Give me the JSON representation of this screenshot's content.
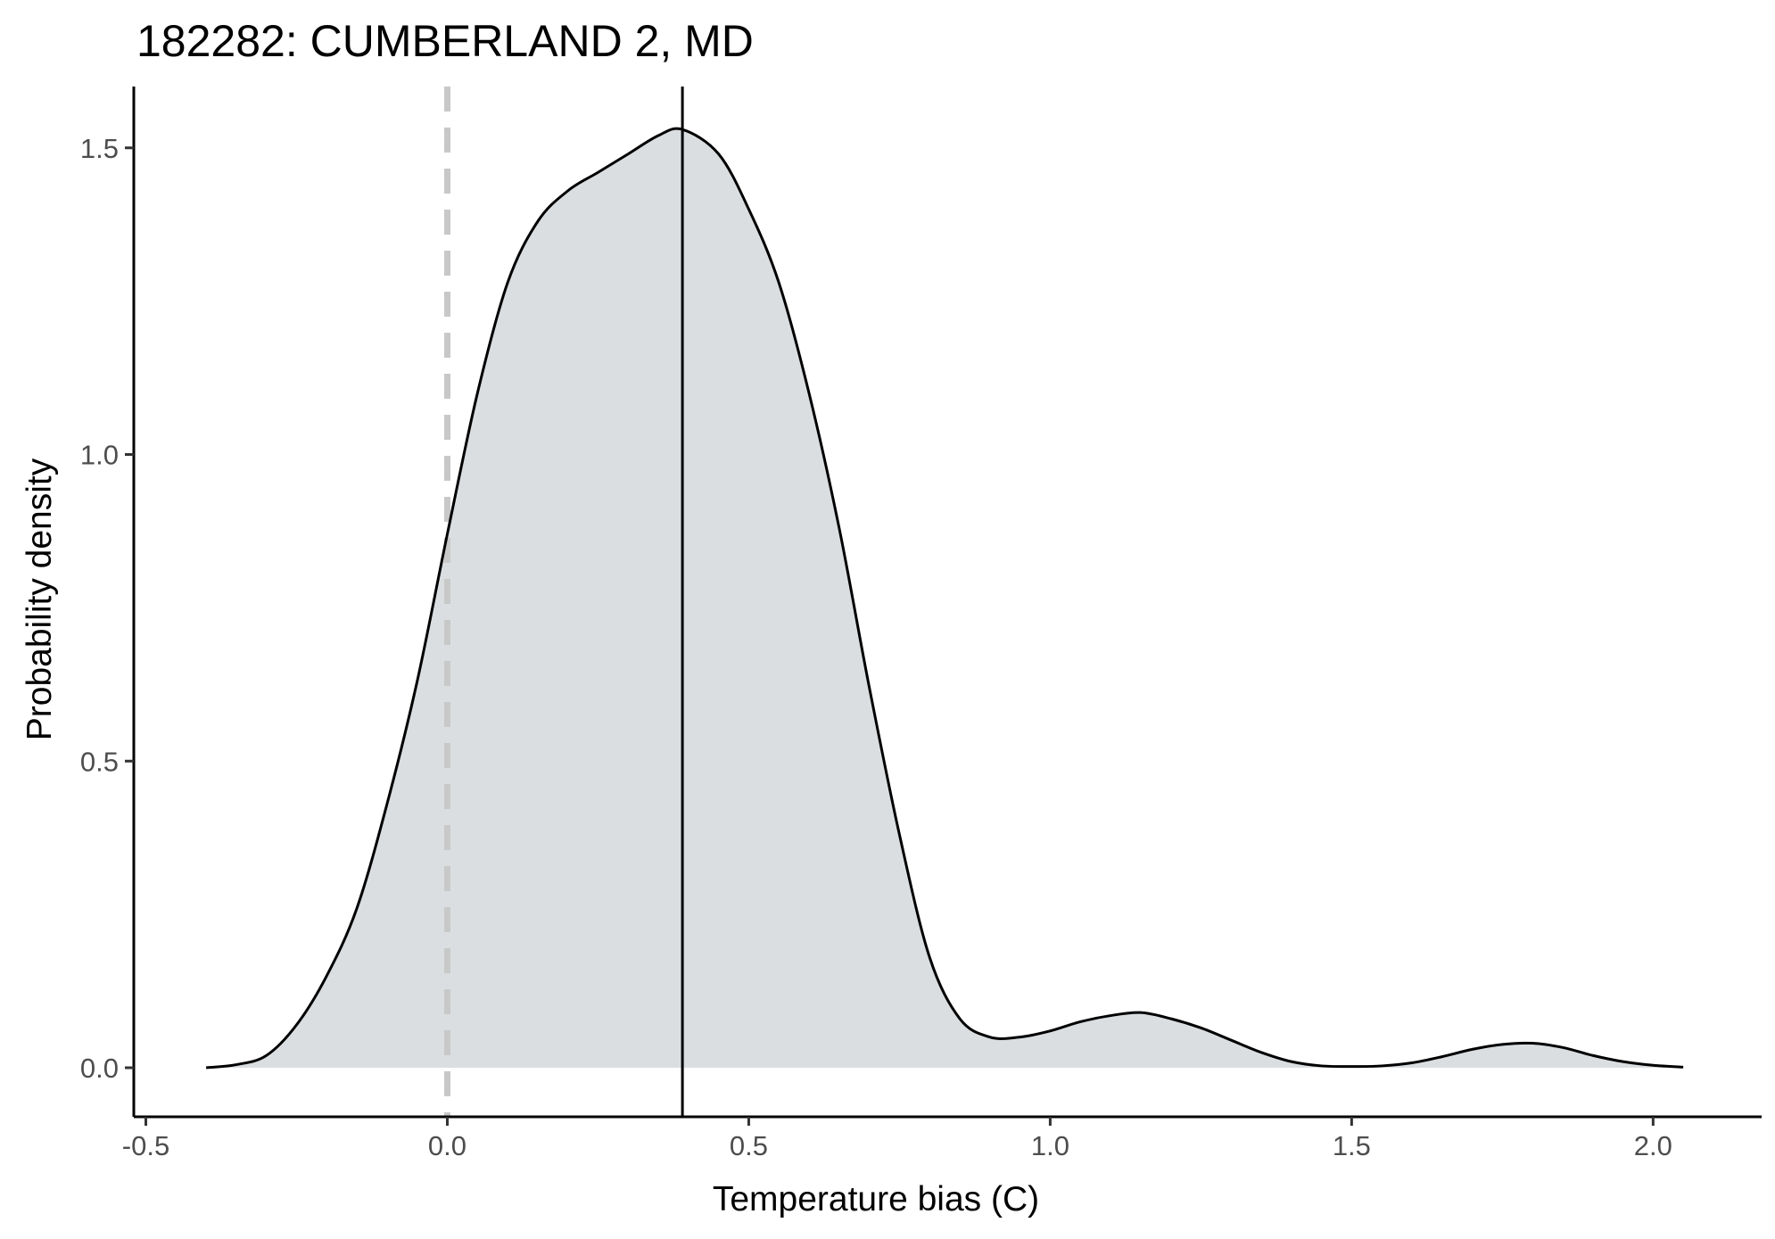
{
  "chart_data": {
    "type": "area",
    "title": "182282: CUMBERLAND 2, MD",
    "xlabel": "Temperature bias (C)",
    "ylabel": "Probability density",
    "xlim": [
      -0.52,
      2.18
    ],
    "ylim": [
      -0.08,
      1.6
    ],
    "x_ticks": [
      {
        "value": -0.5,
        "label": "-0.5"
      },
      {
        "value": 0.0,
        "label": "0.0"
      },
      {
        "value": 0.5,
        "label": "0.5"
      },
      {
        "value": 1.0,
        "label": "1.0"
      },
      {
        "value": 1.5,
        "label": "1.5"
      },
      {
        "value": 2.0,
        "label": "2.0"
      }
    ],
    "y_ticks": [
      {
        "value": 0.0,
        "label": "0.0"
      },
      {
        "value": 0.5,
        "label": "0.5"
      },
      {
        "value": 1.0,
        "label": "1.0"
      },
      {
        "value": 1.5,
        "label": "1.5"
      }
    ],
    "grid": false,
    "fill_color": "#dadee1",
    "line_color": "#000000",
    "series": [
      {
        "x": [
          -0.4,
          -0.35,
          -0.3,
          -0.25,
          -0.2,
          -0.15,
          -0.1,
          -0.05,
          0.0,
          0.05,
          0.1,
          0.15,
          0.2,
          0.25,
          0.3,
          0.35,
          0.39,
          0.45,
          0.5,
          0.55,
          0.6,
          0.65,
          0.7,
          0.75,
          0.8,
          0.85,
          0.9,
          0.95,
          1.0,
          1.05,
          1.1,
          1.15,
          1.2,
          1.25,
          1.3,
          1.35,
          1.4,
          1.45,
          1.5,
          1.55,
          1.6,
          1.65,
          1.7,
          1.75,
          1.8,
          1.85,
          1.9,
          1.95,
          2.0,
          2.05
        ],
        "y": [
          0.0,
          0.005,
          0.02,
          0.07,
          0.15,
          0.26,
          0.43,
          0.63,
          0.87,
          1.1,
          1.28,
          1.38,
          1.43,
          1.46,
          1.49,
          1.52,
          1.53,
          1.49,
          1.4,
          1.28,
          1.1,
          0.88,
          0.62,
          0.38,
          0.18,
          0.08,
          0.05,
          0.05,
          0.06,
          0.075,
          0.085,
          0.09,
          0.08,
          0.065,
          0.045,
          0.025,
          0.01,
          0.003,
          0.002,
          0.003,
          0.008,
          0.018,
          0.03,
          0.038,
          0.04,
          0.033,
          0.02,
          0.01,
          0.004,
          0.001
        ]
      }
    ],
    "reference_lines": [
      {
        "x": 0.0,
        "style": "dashed",
        "color": "#c8c8c8"
      },
      {
        "x": 0.39,
        "style": "solid",
        "color": "#000000"
      }
    ]
  }
}
